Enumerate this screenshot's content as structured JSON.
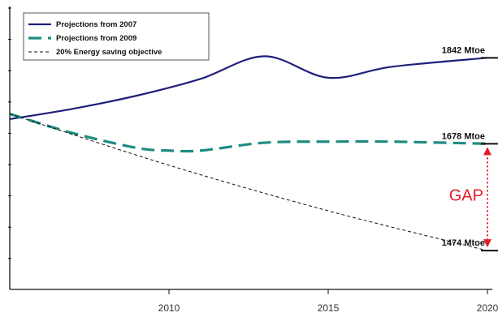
{
  "chart_data": {
    "type": "line",
    "title": "",
    "xlabel": "",
    "ylabel": "",
    "xlim": [
      2005,
      2020
    ],
    "ylim": [
      1400,
      1940
    ],
    "x_ticks": [
      2010,
      2015,
      2020
    ],
    "grid": false,
    "legend_position": "top-left",
    "series": [
      {
        "name": "Projections from 2007",
        "color": "#1f1f7a",
        "style": "solid",
        "points": [
          [
            2005,
            1725
          ],
          [
            2007,
            1745
          ],
          [
            2009,
            1770
          ],
          [
            2011,
            1802
          ],
          [
            2013,
            1845
          ],
          [
            2015,
            1804
          ],
          [
            2017,
            1825
          ],
          [
            2020,
            1842
          ]
        ]
      },
      {
        "name": "Projections from 2009",
        "color": "#1e8c82",
        "style": "dashed",
        "points": [
          [
            2005,
            1735
          ],
          [
            2007,
            1698
          ],
          [
            2009,
            1670
          ],
          [
            2010,
            1665
          ],
          [
            2011,
            1665
          ],
          [
            2013,
            1680
          ],
          [
            2015,
            1682
          ],
          [
            2017,
            1682
          ],
          [
            2020,
            1678
          ]
        ]
      },
      {
        "name": "20% Energy saving objective",
        "color": "#111111",
        "style": "dotted",
        "points": [
          [
            2005,
            1735
          ],
          [
            2010,
            1637
          ],
          [
            2015,
            1550
          ],
          [
            2020,
            1474
          ]
        ]
      }
    ],
    "annotations": [
      {
        "text": "1842 Mtoe",
        "x": 2020,
        "y": 1842
      },
      {
        "text": "1678 Mtoe",
        "x": 2020,
        "y": 1678
      },
      {
        "text": "1474 Mtoe",
        "x": 2020,
        "y": 1474
      },
      {
        "text": "GAP",
        "color": "#e11d2a",
        "from": 1678,
        "to": 1474
      }
    ]
  }
}
